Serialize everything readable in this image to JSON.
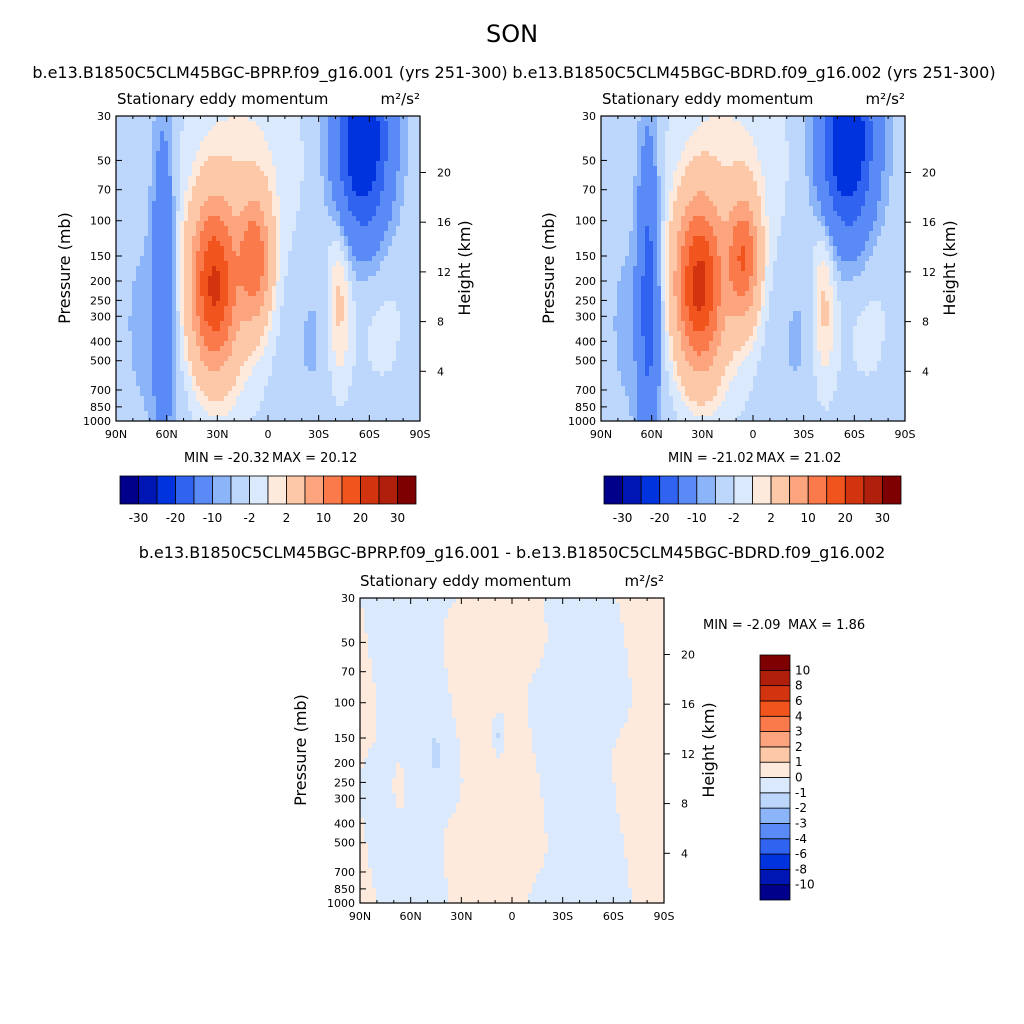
{
  "season": "SON",
  "palettes": {
    "main_colors": [
      "#00008b",
      "#0016b4",
      "#0033dd",
      "#3063f0",
      "#5a8af5",
      "#8cb4f8",
      "#bdd6fb",
      "#dbe9fd",
      "#feeadc",
      "#fdc8a8",
      "#fca47e",
      "#fb7a4c",
      "#f2541d",
      "#d33410",
      "#b01e0c",
      "#7f0000"
    ],
    "main_levels": [
      "-30",
      "-20",
      "-10",
      "-2",
      "2",
      "10",
      "20",
      "30"
    ],
    "diff_colors": [
      "#00008b",
      "#0016b4",
      "#0033dd",
      "#3063f0",
      "#5a8af5",
      "#8cb4f8",
      "#bdd6fb",
      "#dbe9fd",
      "#feeadc",
      "#fdc8a8",
      "#fca47e",
      "#fb7a4c",
      "#f2541d",
      "#d33410",
      "#b01e0c",
      "#7f0000"
    ],
    "diff_levels": [
      "-10",
      "-8",
      "-6",
      "-4",
      "-3",
      "-2",
      "-1",
      "0",
      "1",
      "2",
      "3",
      "4",
      "6",
      "8",
      "10"
    ]
  },
  "chart_data": [
    {
      "id": "case1",
      "type": "contour",
      "title": "b.e13.B1850C5CLM45BGC-BPRP.f09_g16.001 (yrs 251-300)",
      "left_string": "Stationary eddy momentum",
      "units": "m²/s²",
      "xlabel": "",
      "ylabel": "Pressure (mb)",
      "ylabel_right": "Height (km)",
      "xticks": [
        "90N",
        "60N",
        "30N",
        "0",
        "30S",
        "60S",
        "90S"
      ],
      "xtick_lat": [
        90,
        60,
        30,
        0,
        -30,
        -60,
        -90
      ],
      "yticks": [
        "30",
        "50",
        "70",
        "100",
        "150",
        "200",
        "250",
        "300",
        "400",
        "500",
        "700",
        "850",
        "1000"
      ],
      "ytick_p": [
        30,
        50,
        70,
        100,
        150,
        200,
        250,
        300,
        400,
        500,
        700,
        850,
        1000
      ],
      "height_ticks": [
        "4",
        "8",
        "12",
        "16",
        "20"
      ],
      "height_km": [
        4,
        8,
        12,
        16,
        20
      ],
      "ylim_p": [
        30,
        1000
      ],
      "min_label": "MIN = -20.32",
      "max_label": "MAX =  20.12",
      "min": -20.32,
      "max": 20.12,
      "blobs": [
        {
          "lat": 32,
          "p": 210,
          "slat": 9,
          "slog": 0.27,
          "amp": 20
        },
        {
          "lat": 8,
          "p": 155,
          "slat": 6,
          "slog": 0.2,
          "amp": 13
        },
        {
          "lat": 62,
          "p": 200,
          "slat": 4,
          "slog": 0.5,
          "amp": -5
        },
        {
          "lat": -56,
          "p": 40,
          "slat": 10,
          "slog": 0.3,
          "amp": -15
        },
        {
          "lat": -42,
          "p": 250,
          "slat": 5,
          "slog": 0.3,
          "amp": 3
        },
        {
          "lat": 15,
          "p": 80,
          "slat": 25,
          "slog": 0.6,
          "amp": 2
        }
      ]
    },
    {
      "id": "case2",
      "type": "contour",
      "title": "b.e13.B1850C5CLM45BGC-BDRD.f09_g16.002 (yrs 251-300)",
      "left_string": "Stationary eddy momentum",
      "units": "m²/s²",
      "xlabel": "",
      "ylabel": "Pressure (mb)",
      "ylabel_right": "Height (km)",
      "xticks": [
        "90N",
        "60N",
        "30N",
        "0",
        "30S",
        "60S",
        "90S"
      ],
      "xtick_lat": [
        90,
        60,
        30,
        0,
        -30,
        -60,
        -90
      ],
      "yticks": [
        "30",
        "50",
        "70",
        "100",
        "150",
        "200",
        "250",
        "300",
        "400",
        "500",
        "700",
        "850",
        "1000"
      ],
      "ytick_p": [
        30,
        50,
        70,
        100,
        150,
        200,
        250,
        300,
        400,
        500,
        700,
        850,
        1000
      ],
      "height_ticks": [
        "4",
        "8",
        "12",
        "16",
        "20"
      ],
      "height_km": [
        4,
        8,
        12,
        16,
        20
      ],
      "ylim_p": [
        30,
        1000
      ],
      "min_label": "MIN = -21.02",
      "max_label": "MAX =  21.02",
      "min": -21.02,
      "max": 21.02,
      "blobs": [
        {
          "lat": 32,
          "p": 210,
          "slat": 9,
          "slog": 0.27,
          "amp": 21
        },
        {
          "lat": 6,
          "p": 155,
          "slat": 6,
          "slog": 0.2,
          "amp": 14
        },
        {
          "lat": 62,
          "p": 240,
          "slat": 4,
          "slog": 0.5,
          "amp": -7
        },
        {
          "lat": -56,
          "p": 40,
          "slat": 10,
          "slog": 0.3,
          "amp": -15
        },
        {
          "lat": -42,
          "p": 260,
          "slat": 5,
          "slog": 0.3,
          "amp": 3
        },
        {
          "lat": 15,
          "p": 80,
          "slat": 25,
          "slog": 0.6,
          "amp": 2
        }
      ]
    },
    {
      "id": "diff",
      "type": "contour",
      "title": "b.e13.B1850C5CLM45BGC-BPRP.f09_g16.001 - b.e13.B1850C5CLM45BGC-BDRD.f09_g16.002",
      "left_string": "Stationary eddy momentum",
      "units": "m²/s²",
      "xlabel": "",
      "ylabel": "Pressure (mb)",
      "ylabel_right": "Height (km)",
      "xticks": [
        "90N",
        "60N",
        "30N",
        "0",
        "30S",
        "60S",
        "90S"
      ],
      "xtick_lat": [
        90,
        60,
        30,
        0,
        -30,
        -60,
        -90
      ],
      "yticks": [
        "30",
        "50",
        "70",
        "100",
        "150",
        "200",
        "250",
        "300",
        "400",
        "500",
        "700",
        "850",
        "1000"
      ],
      "ytick_p": [
        30,
        50,
        70,
        100,
        150,
        200,
        250,
        300,
        400,
        500,
        700,
        850,
        1000
      ],
      "height_ticks": [
        "4",
        "8",
        "12",
        "16",
        "20"
      ],
      "height_km": [
        4,
        8,
        12,
        16,
        20
      ],
      "ylim_p": [
        30,
        1000
      ],
      "min_label": "MIN =  -2.09",
      "max_label": "MAX =   1.86",
      "min": -2.09,
      "max": 1.86,
      "blobs": [
        {
          "lat": 8,
          "p": 145,
          "slat": 3,
          "slog": 0.08,
          "amp": -1.8
        },
        {
          "lat": 45,
          "p": 180,
          "slat": 2,
          "slog": 0.05,
          "amp": -1.4
        },
        {
          "lat": 67,
          "p": 270,
          "slat": 2,
          "slog": 0.08,
          "amp": 1.3
        }
      ]
    }
  ]
}
